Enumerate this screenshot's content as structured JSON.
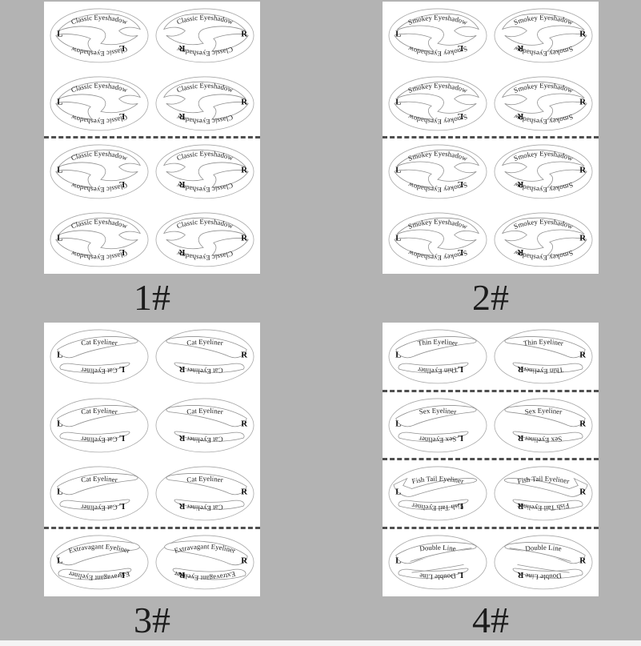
{
  "colors": {
    "background": "#b3b3b3",
    "sheet": "#ffffff",
    "stencil_outline": "#a8a8a8",
    "cut_line": "#4f4f4f",
    "text": "#1b1b1b",
    "edge_strip": "#f4f4f4"
  },
  "stencil_letters": {
    "left": "L",
    "right": "R"
  },
  "panels": [
    {
      "label": "1#",
      "dividers": [
        0.5
      ],
      "rows": [
        {
          "name": "Classic Eyeshadow",
          "shape": "swirl"
        },
        {
          "name": "Classic Eyeshadow",
          "shape": "swirl"
        },
        {
          "name": "Classic Eyeshadow",
          "shape": "swirl"
        },
        {
          "name": "Classic Eyeshadow",
          "shape": "swirl"
        }
      ]
    },
    {
      "label": "2#",
      "dividers": [
        0.5
      ],
      "rows": [
        {
          "name": "Smokey Eyeshadow",
          "shape": "swirl2"
        },
        {
          "name": "Smokey Eyeshadow",
          "shape": "swirl2"
        },
        {
          "name": "Smokey Eyeshadow",
          "shape": "swirl2"
        },
        {
          "name": "Smokey Eyeshadow",
          "shape": "swirl2"
        }
      ]
    },
    {
      "label": "3#",
      "dividers": [
        0.75
      ],
      "rows": [
        {
          "name": "Cat Eyeliner",
          "shape": "wing"
        },
        {
          "name": "Cat Eyeliner",
          "shape": "wing"
        },
        {
          "name": "Cat Eyeliner",
          "shape": "wing"
        },
        {
          "name": "Extravagant Eyeliner",
          "shape": "wingx"
        }
      ]
    },
    {
      "label": "4#",
      "dividers": [
        0.25,
        0.5,
        0.75
      ],
      "rows": [
        {
          "name": "Thin Eyeliner",
          "shape": "wing"
        },
        {
          "name": "Sex Eyeliner",
          "shape": "wing"
        },
        {
          "name": "Fish Tail Eyeliner",
          "shape": "fishtail"
        },
        {
          "name": "Double Line",
          "shape": "doubleline"
        }
      ]
    }
  ]
}
